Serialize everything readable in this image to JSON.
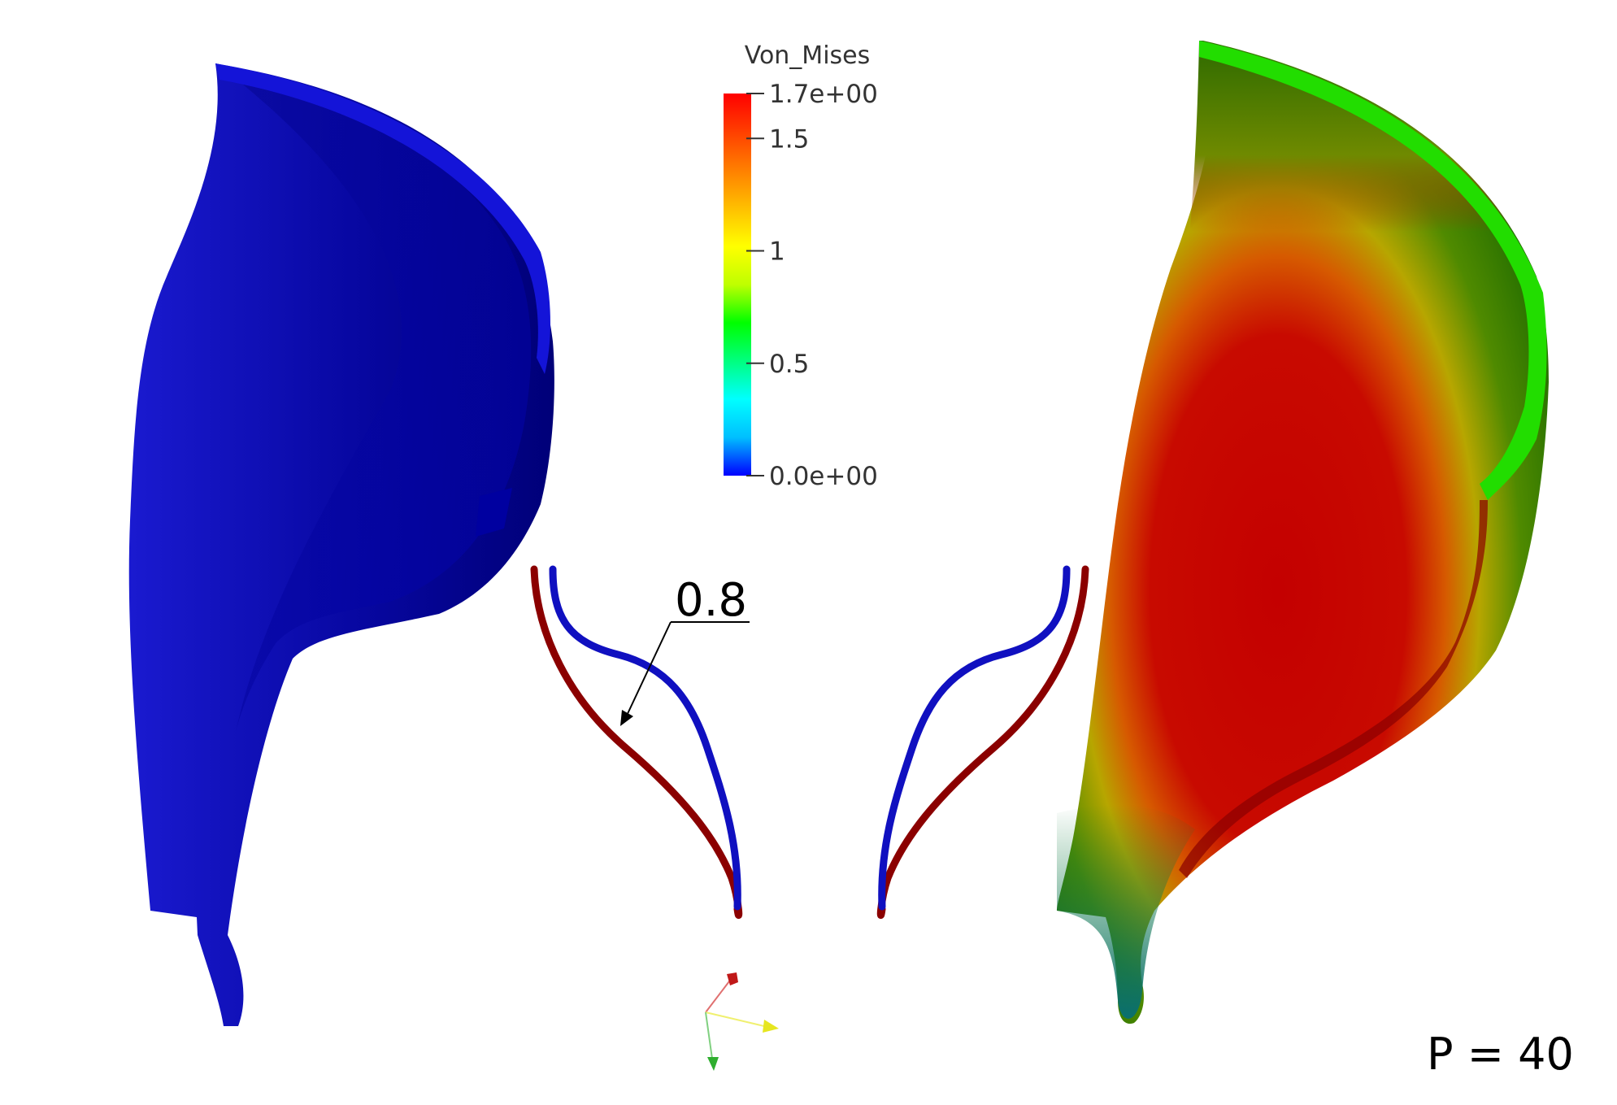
{
  "legend": {
    "title": "Von_Mises",
    "ticks": [
      {
        "value": 1.7,
        "label": "1.7e+00"
      },
      {
        "value": 1.5,
        "label": "1.5"
      },
      {
        "value": 1.0,
        "label": "1"
      },
      {
        "value": 0.5,
        "label": "0.5"
      },
      {
        "value": 0.0,
        "label": "0.0e+00"
      }
    ],
    "range": [
      0.0,
      1.7
    ],
    "colormap": [
      "#0000ff",
      "#00bfff",
      "#00ffff",
      "#00ff7f",
      "#00ff00",
      "#bfff00",
      "#ffff00",
      "#ffbf00",
      "#ff7f00",
      "#ff3f00",
      "#ff0000"
    ]
  },
  "callout": {
    "label": "0.8"
  },
  "pressure": {
    "label": "P = 40"
  },
  "colors": {
    "undeformed_profile": "#1010c0",
    "deformed_profile": "#8b0000",
    "left_leaflet": "#0a0aa8",
    "axis_x": "#e8e820",
    "axis_y": "#30c030",
    "axis_z": "#d02020"
  }
}
